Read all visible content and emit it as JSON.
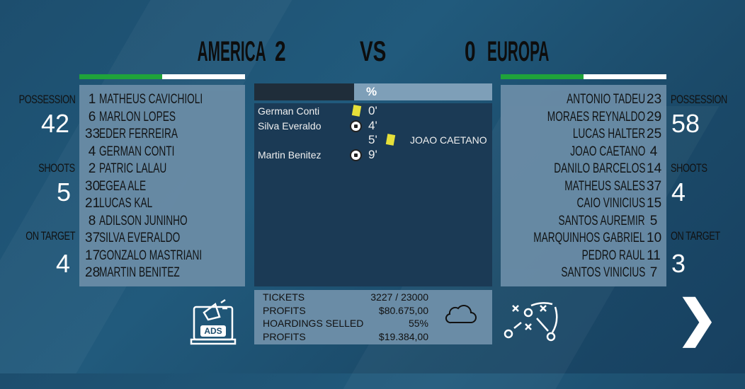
{
  "home": {
    "name": "AMERICA",
    "score": "2",
    "possession_label": "POSSESSION",
    "possession": "42",
    "shoots_label": "SHOOTS",
    "shoots": "5",
    "on_target_label": "ON TARGET",
    "on_target": "4",
    "players": [
      {
        "n": "1",
        "name": "MATHEUS CAVICHIOLI"
      },
      {
        "n": "6",
        "name": "MARLON LOPES"
      },
      {
        "n": "33",
        "name": "EDER FERREIRA"
      },
      {
        "n": "4",
        "name": "GERMAN CONTI"
      },
      {
        "n": "2",
        "name": "PATRIC LALAU"
      },
      {
        "n": "30",
        "name": "EGEA ALE"
      },
      {
        "n": "21",
        "name": "LUCAS KAL"
      },
      {
        "n": "8",
        "name": "ADILSON JUNINHO"
      },
      {
        "n": "37",
        "name": "SILVA EVERALDO"
      },
      {
        "n": "17",
        "name": "GONZALO MASTRIANI"
      },
      {
        "n": "28",
        "name": "MARTIN BENITEZ"
      }
    ]
  },
  "vs": "VS",
  "away": {
    "name": "EUROPA",
    "score": "0",
    "possession_label": "POSSESSION",
    "possession": "58",
    "shoots_label": "SHOOTS",
    "shoots": "4",
    "on_target_label": "ON TARGET",
    "on_target": "3",
    "players": [
      {
        "n": "23",
        "name": "ANTONIO TADEU"
      },
      {
        "n": "29",
        "name": "MORAES REYNALDO"
      },
      {
        "n": "25",
        "name": "LUCAS HALTER"
      },
      {
        "n": "4",
        "name": "JOAO CAETANO"
      },
      {
        "n": "14",
        "name": "DANILO BARCELOS"
      },
      {
        "n": "37",
        "name": "MATHEUS SALES"
      },
      {
        "n": "15",
        "name": "CAIO VINICIUS"
      },
      {
        "n": "5",
        "name": "SANTOS AUREMIR"
      },
      {
        "n": "10",
        "name": "MARQUINHOS GABRIEL"
      },
      {
        "n": "11",
        "name": "PEDRO RAUL"
      },
      {
        "n": "7",
        "name": "SANTOS VINICIUS"
      }
    ]
  },
  "possession_bar": {
    "label": "%",
    "home_fraction": 0.42
  },
  "team_colors": {
    "primary": "#1fa33a",
    "secondary": "#ffffff"
  },
  "events": [
    {
      "side": "home",
      "player": "German Conti",
      "type": "yellow-card",
      "minute": "0'"
    },
    {
      "side": "home",
      "player": "Silva Everaldo",
      "type": "goal",
      "minute": "4'"
    },
    {
      "side": "away",
      "player": "JOAO CAETANO",
      "type": "yellow-card",
      "minute": "5'"
    },
    {
      "side": "home",
      "player": "Martin Benitez",
      "type": "goal",
      "minute": "9'"
    }
  ],
  "finance": [
    {
      "label": "TICKETS",
      "value": "3227 / 23000"
    },
    {
      "label": "PROFITS",
      "value": "$80.675,00"
    },
    {
      "label": "HOARDINGS SELLED",
      "value": "55%"
    },
    {
      "label": "PROFITS",
      "value": "$19.384,00"
    }
  ],
  "ads_label": "ADS",
  "next_label": "❯"
}
